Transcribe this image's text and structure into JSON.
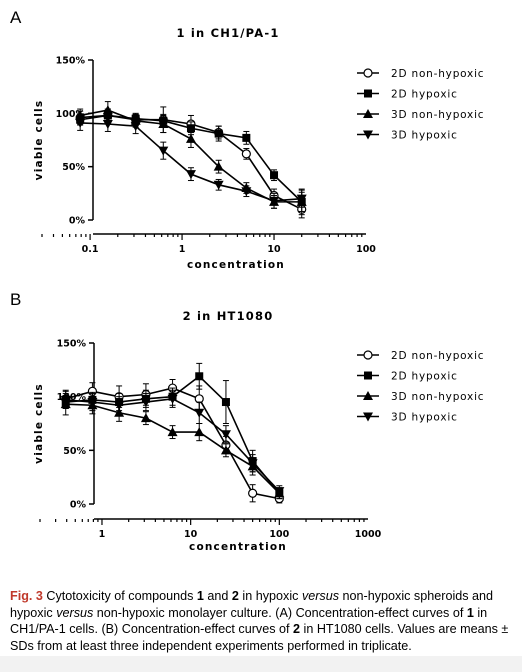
{
  "panels": {
    "a": {
      "letter": "A"
    },
    "b": {
      "letter": "B"
    }
  },
  "chart_data": [
    {
      "type": "line",
      "title": "1 in CH1/PA-1",
      "xlabel": "concentration",
      "ylabel": "viable cells",
      "xscale": "log",
      "xlim": [
        0.03,
        100
      ],
      "ylim": [
        0,
        150
      ],
      "xticks": [
        "0.1",
        "1",
        "10",
        "100"
      ],
      "yticks": [
        "0%",
        "50%",
        "100%",
        "150%"
      ],
      "legend_position": "right",
      "series": [
        {
          "name": "2D non-hypoxic",
          "marker": "circle-open",
          "x": [
            0.078,
            0.156,
            0.313,
            0.625,
            1.25,
            2.5,
            5,
            10,
            20
          ],
          "y": [
            96,
            98,
            94,
            94,
            90,
            82,
            62,
            23,
            10
          ],
          "err": [
            6,
            6,
            5,
            12,
            8,
            6,
            5,
            6,
            8
          ]
        },
        {
          "name": "2D hypoxic",
          "marker": "square-filled",
          "x": [
            0.078,
            0.156,
            0.313,
            0.625,
            1.25,
            2.5,
            5,
            10,
            20
          ],
          "y": [
            94,
            98,
            95,
            93,
            86,
            81,
            77,
            42,
            17
          ],
          "err": [
            5,
            6,
            5,
            6,
            6,
            7,
            6,
            5,
            9
          ]
        },
        {
          "name": "3D non-hypoxic",
          "marker": "triangle-up-filled",
          "x": [
            0.078,
            0.156,
            0.313,
            0.625,
            1.25,
            2.5,
            5,
            10,
            20
          ],
          "y": [
            98,
            103,
            93,
            90,
            76,
            50,
            30,
            17,
            17
          ],
          "err": [
            6,
            8,
            6,
            8,
            8,
            6,
            5,
            6,
            12
          ]
        },
        {
          "name": "3D hypoxic",
          "marker": "triangle-down-filled",
          "x": [
            0.078,
            0.156,
            0.313,
            0.625,
            1.25,
            2.5,
            5,
            10,
            20
          ],
          "y": [
            91,
            90,
            88,
            65,
            43,
            33,
            27,
            18,
            20
          ],
          "err": [
            7,
            7,
            7,
            8,
            6,
            5,
            5,
            7,
            8
          ]
        }
      ]
    },
    {
      "type": "line",
      "title": "2 in HT1080",
      "xlabel": "concentration",
      "ylabel": "viable cells",
      "xscale": "log",
      "xlim": [
        0.2,
        1000
      ],
      "ylim": [
        0,
        150
      ],
      "xticks": [
        "1",
        "10",
        "100",
        "1000"
      ],
      "yticks": [
        "0%",
        "50%",
        "100%",
        "150%"
      ],
      "legend_position": "right",
      "series": [
        {
          "name": "2D non-hypoxic",
          "marker": "circle-open",
          "x": [
            0.39,
            0.78,
            1.56,
            3.13,
            6.25,
            12.5,
            25,
            50,
            100
          ],
          "y": [
            98,
            105,
            100,
            102,
            108,
            98,
            55,
            10,
            5
          ],
          "err": [
            8,
            8,
            10,
            10,
            8,
            12,
            8,
            8,
            4
          ]
        },
        {
          "name": "2D hypoxic",
          "marker": "square-filled",
          "x": [
            0.39,
            0.78,
            1.56,
            3.13,
            6.25,
            12.5,
            25,
            50,
            100
          ],
          "y": [
            95,
            97,
            95,
            98,
            100,
            119,
            95,
            40,
            10
          ],
          "err": [
            6,
            7,
            8,
            8,
            8,
            12,
            20,
            10,
            5
          ]
        },
        {
          "name": "3D non-hypoxic",
          "marker": "triangle-up-filled",
          "x": [
            0.39,
            0.78,
            1.56,
            3.13,
            6.25,
            12.5,
            25,
            50,
            100
          ],
          "y": [
            93,
            92,
            85,
            80,
            67,
            67,
            50,
            35,
            10
          ],
          "err": [
            10,
            8,
            8,
            6,
            6,
            8,
            6,
            8,
            5
          ]
        },
        {
          "name": "3D hypoxic",
          "marker": "triangle-down-filled",
          "x": [
            0.39,
            0.78,
            1.56,
            3.13,
            6.25,
            12.5,
            25,
            50,
            100
          ],
          "y": [
            97,
            95,
            92,
            95,
            98,
            85,
            65,
            38,
            12
          ],
          "err": [
            8,
            8,
            8,
            8,
            8,
            10,
            8,
            8,
            5
          ]
        }
      ]
    }
  ],
  "caption": {
    "label": "Fig. 3",
    "t1": " Cytotoxicity of compounds ",
    "b1": "1",
    "t2": " and ",
    "b2": "2",
    "t3": " in hypoxic ",
    "i1": "versus",
    "t4": " non-hypoxic spheroids and hypoxic ",
    "i2": "versus",
    "t5": " non-hypoxic monolayer culture. (A) Concentration-effect curves of ",
    "b3": "1",
    "t6": " in CH1/PA-1 cells. (B) Concentration-effect curves of ",
    "b4": "2",
    "t7": " in HT1080 cells. Values are means ± SDs from at least three independent experiments performed in triplicate."
  }
}
